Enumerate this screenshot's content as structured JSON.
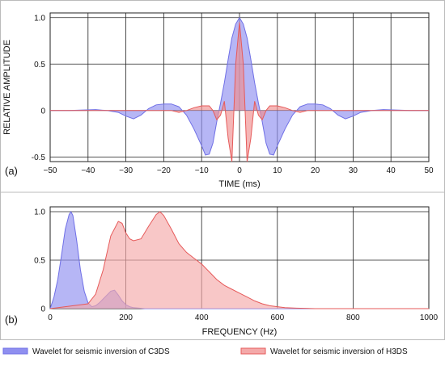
{
  "chart_data": [
    {
      "type": "area",
      "panel_label": "(a)",
      "xlabel": "TIME (ms)",
      "ylabel": "RELATIVE AMPLITUDE",
      "xlim": [
        -50,
        50
      ],
      "ylim": [
        -0.55,
        1.05
      ],
      "x_ticks": [
        -50,
        -40,
        -30,
        -20,
        -10,
        0,
        10,
        20,
        30,
        40,
        50
      ],
      "y_ticks": [
        -0.5,
        0,
        0.5,
        1.0
      ],
      "y_tick_labels": [
        "-0.5",
        "0",
        "0.5",
        "1.0"
      ],
      "grid": true,
      "series": [
        {
          "color": "#6f6fe6",
          "fill": "#8f8ff0",
          "x": [
            -50,
            -45,
            -42,
            -38,
            -35,
            -32,
            -30,
            -28,
            -26,
            -24,
            -22,
            -20,
            -18,
            -16,
            -14,
            -12,
            -10,
            -9,
            -8,
            -7,
            -6,
            -5,
            -4,
            -3,
            -2,
            -1,
            0,
            1,
            2,
            3,
            4,
            5,
            6,
            7,
            8,
            9,
            10,
            12,
            14,
            16,
            18,
            20,
            22,
            24,
            26,
            28,
            30,
            32,
            35,
            38,
            42,
            45,
            50
          ],
          "values": [
            0,
            0,
            0.005,
            0.01,
            0.0,
            -0.02,
            -0.06,
            -0.09,
            -0.05,
            0.02,
            0.06,
            0.07,
            0.07,
            0.04,
            -0.05,
            -0.2,
            -0.38,
            -0.48,
            -0.47,
            -0.35,
            -0.12,
            0.08,
            0.3,
            0.55,
            0.78,
            0.93,
            1.0,
            0.93,
            0.78,
            0.55,
            0.3,
            0.08,
            -0.12,
            -0.35,
            -0.47,
            -0.48,
            -0.38,
            -0.2,
            -0.05,
            0.04,
            0.07,
            0.07,
            0.06,
            0.02,
            -0.05,
            -0.09,
            -0.06,
            -0.02,
            0.0,
            0.01,
            0.005,
            0,
            0
          ]
        },
        {
          "color": "#e65a5a",
          "fill": "#f08f8f",
          "x": [
            -50,
            -30,
            -25,
            -20,
            -18,
            -16,
            -14,
            -12,
            -10,
            -8,
            -7,
            -6,
            -5,
            -4,
            -3,
            -2,
            -1,
            0,
            1,
            2,
            3,
            4,
            5,
            6,
            7,
            8,
            10,
            12,
            14,
            16,
            18,
            20,
            25,
            30,
            50
          ],
          "values": [
            0,
            0,
            0,
            0,
            0.0,
            -0.02,
            0.0,
            0.03,
            0.05,
            0.05,
            0.0,
            -0.1,
            -0.05,
            0.1,
            -0.3,
            -0.55,
            0.5,
            0.95,
            0.5,
            -0.55,
            -0.3,
            0.1,
            -0.05,
            -0.1,
            0.0,
            0.05,
            0.05,
            0.03,
            0.0,
            -0.02,
            0.0,
            0,
            0,
            0,
            0
          ]
        }
      ]
    },
    {
      "type": "area",
      "panel_label": "(b)",
      "xlabel": "FREQUENCY (Hz)",
      "ylabel": "",
      "xlim": [
        0,
        1000
      ],
      "ylim": [
        0,
        1.05
      ],
      "x_ticks": [
        0,
        200,
        400,
        600,
        800,
        1000
      ],
      "y_ticks": [
        0,
        0.5,
        1.0
      ],
      "y_tick_labels": [
        "0",
        "0.5",
        "1.0"
      ],
      "grid": true,
      "series": [
        {
          "name": "Wavelet for seismic inversion of C3DS",
          "color": "#6f6fe6",
          "fill": "#8f8ff0",
          "x": [
            0,
            10,
            20,
            30,
            40,
            50,
            55,
            60,
            70,
            80,
            90,
            100,
            110,
            120,
            130,
            140,
            150,
            160,
            170,
            180,
            190,
            200,
            210,
            220,
            250,
            300,
            1000
          ],
          "values": [
            0,
            0.12,
            0.3,
            0.55,
            0.82,
            0.97,
            1.0,
            0.96,
            0.7,
            0.4,
            0.18,
            0.06,
            0.02,
            0.03,
            0.06,
            0.1,
            0.14,
            0.18,
            0.19,
            0.14,
            0.08,
            0.04,
            0.02,
            0.01,
            0,
            0,
            0
          ]
        },
        {
          "name": "Wavelet for seismic inversion of H3DS",
          "color": "#e65a5a",
          "fill": "#f4a9a9",
          "x": [
            0,
            40,
            80,
            100,
            120,
            140,
            160,
            180,
            190,
            200,
            210,
            220,
            240,
            260,
            280,
            290,
            300,
            320,
            340,
            360,
            380,
            400,
            420,
            440,
            460,
            480,
            500,
            520,
            540,
            560,
            580,
            600,
            620,
            650,
            700,
            750,
            800,
            900,
            1000
          ],
          "values": [
            0,
            0.02,
            0.04,
            0.05,
            0.15,
            0.4,
            0.75,
            0.9,
            0.88,
            0.78,
            0.72,
            0.7,
            0.72,
            0.85,
            0.97,
            1.0,
            0.96,
            0.82,
            0.67,
            0.58,
            0.52,
            0.46,
            0.38,
            0.3,
            0.24,
            0.2,
            0.16,
            0.12,
            0.08,
            0.05,
            0.03,
            0.02,
            0.01,
            0.005,
            0,
            0,
            0,
            0,
            0
          ]
        }
      ],
      "legend_placement": "bottom"
    }
  ]
}
